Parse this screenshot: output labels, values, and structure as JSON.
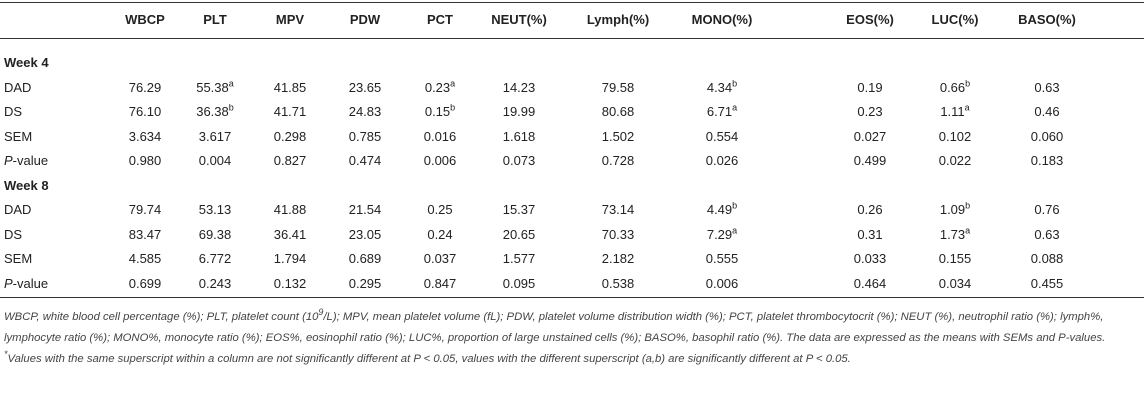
{
  "table": {
    "columns": [
      "WBCP",
      "PLT",
      "MPV",
      "PDW",
      "PCT",
      "NEUT(%)",
      "Lymph(%)",
      "MONO(%)",
      "EOS(%)",
      "LUC(%)",
      "BASO(%)"
    ],
    "sections": [
      {
        "title": "Week 4",
        "rows": [
          {
            "label": "DAD",
            "cells": [
              "76.29",
              {
                "value": "55.38",
                "sup": "a"
              },
              "41.85",
              "23.65",
              {
                "value": "0.23",
                "sup": "a"
              },
              "14.23",
              "79.58",
              {
                "value": "4.34",
                "sup": "b"
              },
              "0.19",
              {
                "value": "0.66",
                "sup": "b"
              },
              "0.63"
            ]
          },
          {
            "label": "DS",
            "cells": [
              "76.10",
              {
                "value": "36.38",
                "sup": "b"
              },
              "41.71",
              "24.83",
              {
                "value": "0.15",
                "sup": "b"
              },
              "19.99",
              "80.68",
              {
                "value": "6.71",
                "sup": "a"
              },
              "0.23",
              {
                "value": "1.11",
                "sup": "a"
              },
              "0.46"
            ]
          },
          {
            "label": "SEM",
            "cells": [
              "3.634",
              "3.617",
              "0.298",
              "0.785",
              "0.016",
              "1.618",
              "1.502",
              "0.554",
              "0.027",
              "0.102",
              "0.060"
            ]
          },
          {
            "label": {
              "italic": "P",
              "text": "-value"
            },
            "cells": [
              "0.980",
              "0.004",
              "0.827",
              "0.474",
              "0.006",
              "0.073",
              "0.728",
              "0.026",
              "0.499",
              "0.022",
              "0.183"
            ]
          }
        ]
      },
      {
        "title": "Week 8",
        "rows": [
          {
            "label": "DAD",
            "cells": [
              "79.74",
              "53.13",
              "41.88",
              "21.54",
              "0.25",
              "15.37",
              "73.14",
              {
                "value": "4.49",
                "sup": "b"
              },
              "0.26",
              {
                "value": "1.09",
                "sup": "b"
              },
              "0.76"
            ]
          },
          {
            "label": "DS",
            "cells": [
              "83.47",
              "69.38",
              "36.41",
              "23.05",
              "0.24",
              "20.65",
              "70.33",
              {
                "value": "7.29",
                "sup": "a"
              },
              "0.31",
              {
                "value": "1.73",
                "sup": "a"
              },
              "0.63"
            ]
          },
          {
            "label": "SEM",
            "cells": [
              "4.585",
              "6.772",
              "1.794",
              "0.689",
              "0.037",
              "1.577",
              "2.182",
              "0.555",
              "0.033",
              "0.155",
              "0.088"
            ]
          },
          {
            "label": {
              "italic": "P",
              "text": "-value"
            },
            "cells": [
              "0.699",
              "0.243",
              "0.132",
              "0.295",
              "0.847",
              "0.095",
              "0.538",
              "0.006",
              "0.464",
              "0.034",
              "0.455"
            ]
          }
        ]
      }
    ]
  },
  "footnote": [
    {
      "text": "WBCP, white blood cell percentage (%); PLT, platelet count (10",
      "style": "normal"
    },
    {
      "text": "9",
      "style": "sup"
    },
    {
      "text": "/L); MPV, mean platelet volume (fL); PDW, platelet volume distribution width (%); PCT, platelet thrombocytocrit (%); NEUT (%), neutrophil ratio (%); lymph%, lymphocyte ratio (%); MONO%, monocyte ratio (%); EOS%, eosinophil ratio (%); LUC%, proportion of large unstained cells (%); BASO%, basophil ratio (%). The data are expressed as the means with SEMs and P-values. ",
      "style": "normal"
    },
    {
      "text": "*",
      "style": "sup"
    },
    {
      "text": "Values with the same superscript within a column are not significantly different at P < 0.05, values with the different superscript (a,b) are significantly different at P < 0.05.",
      "style": "normal"
    }
  ]
}
